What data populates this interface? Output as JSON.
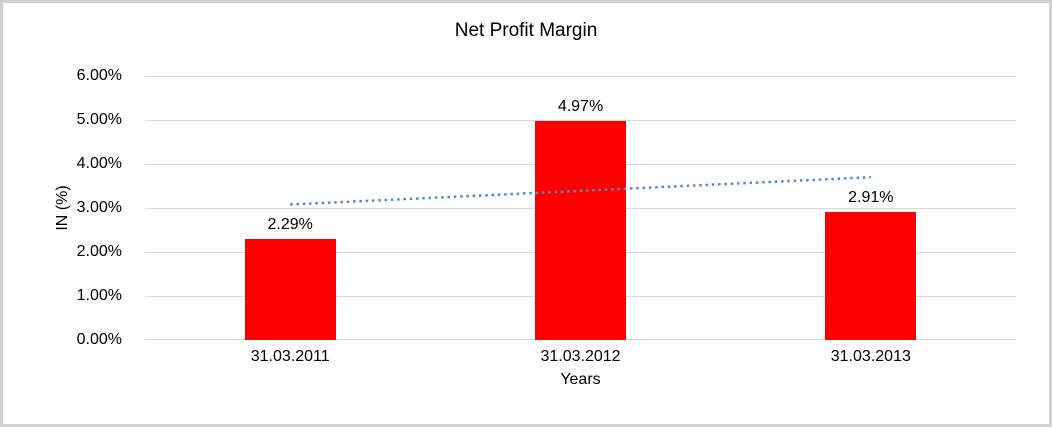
{
  "chart_data": {
    "type": "bar",
    "title": "Net Profit Margin",
    "xlabel": "Years",
    "ylabel": "IN (%)",
    "categories": [
      "31.03.2011",
      "31.03.2012",
      "31.03.2013"
    ],
    "values": [
      2.29,
      4.97,
      2.91
    ],
    "value_labels": [
      "2.29%",
      "4.97%",
      "2.91%"
    ],
    "ylim": [
      0,
      6
    ],
    "y_tick_values": [
      0,
      1,
      2,
      3,
      4,
      5,
      6
    ],
    "y_tick_labels": [
      "0.00%",
      "1.00%",
      "2.00%",
      "3.00%",
      "4.00%",
      "5.00%",
      "6.00%"
    ],
    "grid": true,
    "legend_position": "none",
    "bar_color": "#ff0000",
    "gridline_color": "#d9d9d9",
    "axis_line_color": "#d9d9d9",
    "text_color": "#000000",
    "frame_border_color": "#d2d2d2",
    "trendline": {
      "type": "linear",
      "style": "dotted",
      "color": "#4e8bc8",
      "start_value": 3.08,
      "end_value": 3.7
    }
  }
}
